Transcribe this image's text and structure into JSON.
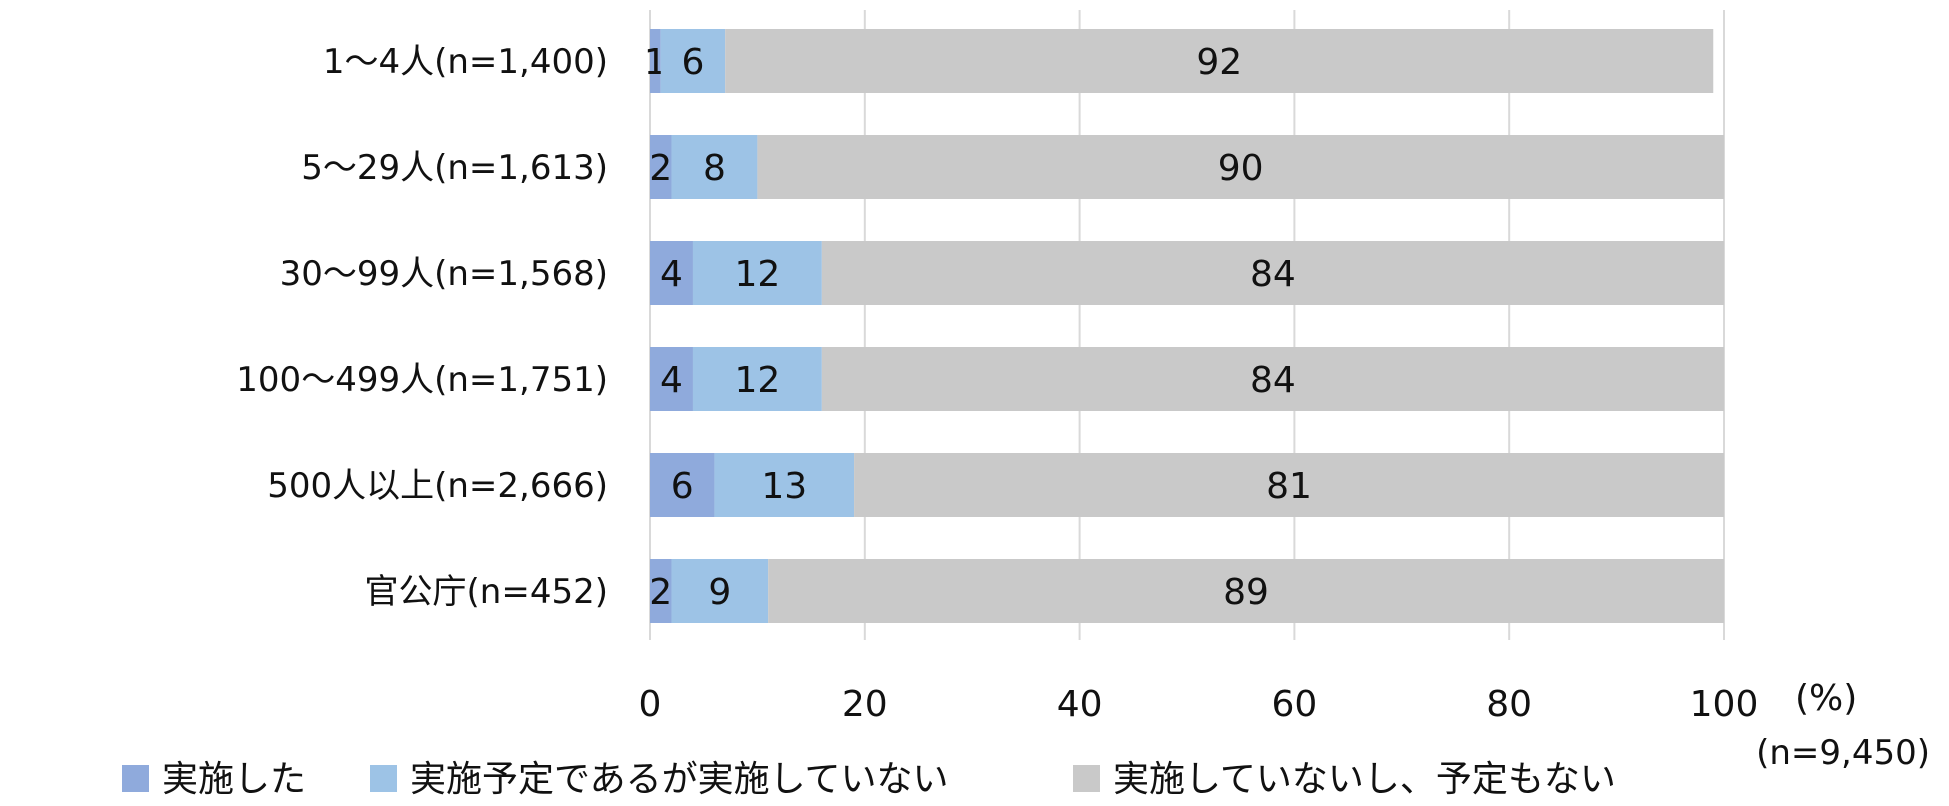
{
  "chart_data": {
    "type": "bar",
    "orientation": "horizontal",
    "stacked": true,
    "categories": [
      "1〜4人(n=1,400)",
      "5〜29人(n=1,613)",
      "30〜99人(n=1,568)",
      "100〜499人(n=1,751)",
      "500人以上(n=2,666)",
      "官公庁(n=452)"
    ],
    "series": [
      {
        "name": "実施した",
        "color": "#8faadc",
        "values": [
          1,
          2,
          4,
          4,
          6,
          2
        ]
      },
      {
        "name": "実施予定であるが実施していない",
        "color": "#9dc3e6",
        "values": [
          6,
          8,
          12,
          12,
          13,
          9
        ]
      },
      {
        "name": "実施していないし、予定もない",
        "color": "#c9c9c9",
        "values": [
          92,
          90,
          84,
          84,
          81,
          89
        ]
      }
    ],
    "xlim": [
      0,
      100
    ],
    "xticks": [
      0,
      20,
      40,
      60,
      80,
      100
    ],
    "xunit": "(%)",
    "note": "(n=9,450)",
    "grid": true,
    "legend_position": "bottom"
  }
}
